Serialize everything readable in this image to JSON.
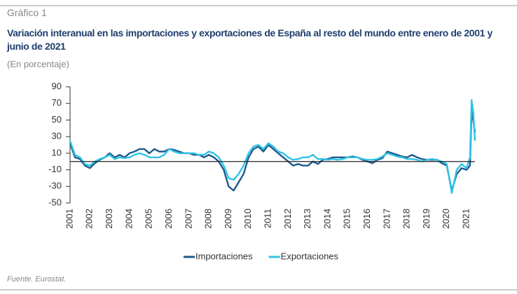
{
  "header": {
    "label": "Gráfico 1",
    "title": "Variación interanual en las importaciones y exportaciones de España al resto del mundo entre enero de 2001 y junio de 2021",
    "subtitle": "(En porcentaje)"
  },
  "source": "Fuente. Eurostat.",
  "chart_data": {
    "type": "line",
    "x": [
      2001,
      2001.25,
      2001.5,
      2001.75,
      2002,
      2002.25,
      2002.5,
      2002.75,
      2003,
      2003.25,
      2003.5,
      2003.75,
      2004,
      2004.25,
      2004.5,
      2004.75,
      2005,
      2005.25,
      2005.5,
      2005.75,
      2006,
      2006.25,
      2006.5,
      2006.75,
      2007,
      2007.25,
      2007.5,
      2007.75,
      2008,
      2008.25,
      2008.5,
      2008.75,
      2009,
      2009.25,
      2009.5,
      2009.75,
      2010,
      2010.25,
      2010.5,
      2010.75,
      2011,
      2011.25,
      2011.5,
      2011.75,
      2012,
      2012.25,
      2012.5,
      2012.75,
      2013,
      2013.25,
      2013.5,
      2013.75,
      2014,
      2014.25,
      2014.5,
      2014.75,
      2015,
      2015.25,
      2015.5,
      2015.75,
      2016,
      2016.25,
      2016.5,
      2016.75,
      2017,
      2017.25,
      2017.5,
      2017.75,
      2018,
      2018.25,
      2018.5,
      2018.75,
      2019,
      2019.25,
      2019.5,
      2019.75,
      2020,
      2020.25,
      2020.5,
      2020.75,
      2021,
      2021.17,
      2021.25,
      2021.33,
      2021.42
    ],
    "series": [
      {
        "name": "Importaciones",
        "color": "#1f5a8c",
        "values": [
          22,
          5,
          3,
          -5,
          -8,
          -2,
          2,
          5,
          10,
          5,
          8,
          5,
          10,
          12,
          15,
          15,
          10,
          15,
          12,
          12,
          15,
          14,
          12,
          10,
          10,
          8,
          8,
          5,
          8,
          5,
          0,
          -10,
          -30,
          -35,
          -25,
          -15,
          5,
          15,
          18,
          12,
          20,
          15,
          10,
          5,
          0,
          -5,
          -3,
          -5,
          -5,
          0,
          -3,
          2,
          3,
          5,
          5,
          5,
          5,
          6,
          5,
          2,
          0,
          -2,
          2,
          4,
          12,
          10,
          8,
          6,
          5,
          8,
          5,
          3,
          2,
          2,
          2,
          -2,
          -5,
          -35,
          -15,
          -8,
          -10,
          -5,
          60,
          50,
          35
        ]
      },
      {
        "name": "Exportaciones",
        "color": "#2ec4e6",
        "values": [
          25,
          8,
          5,
          -3,
          -5,
          0,
          3,
          5,
          8,
          3,
          5,
          4,
          5,
          8,
          10,
          8,
          5,
          5,
          5,
          8,
          15,
          12,
          10,
          10,
          10,
          10,
          8,
          8,
          12,
          10,
          5,
          -5,
          -20,
          -22,
          -15,
          -5,
          10,
          18,
          20,
          15,
          22,
          18,
          12,
          10,
          5,
          2,
          3,
          5,
          5,
          8,
          3,
          3,
          2,
          3,
          2,
          3,
          5,
          5,
          5,
          3,
          2,
          2,
          3,
          6,
          10,
          8,
          6,
          5,
          3,
          3,
          2,
          0,
          2,
          3,
          2,
          0,
          -3,
          -38,
          -10,
          -3,
          -8,
          5,
          74,
          60,
          25
        ]
      }
    ],
    "xlim": [
      2001,
      2021.42
    ],
    "xticks": [
      2001,
      2002,
      2003,
      2004,
      2005,
      2006,
      2007,
      2008,
      2009,
      2010,
      2011,
      2012,
      2013,
      2014,
      2015,
      2016,
      2017,
      2018,
      2019,
      2020,
      2021
    ],
    "ylim": [
      -50,
      90
    ],
    "yticks": [
      -50,
      -30,
      -10,
      10,
      30,
      50,
      70,
      90
    ]
  }
}
